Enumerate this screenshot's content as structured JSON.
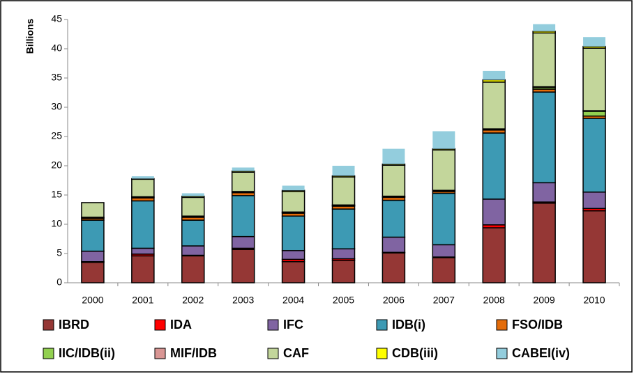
{
  "chart_data": {
    "type": "stacked-bar",
    "y_label": "Billions",
    "categories": [
      "2000",
      "2001",
      "2002",
      "2003",
      "2004",
      "2005",
      "2006",
      "2007",
      "2008",
      "2009",
      "2010"
    ],
    "ylim": [
      0,
      45
    ],
    "yticks": [
      0,
      5,
      10,
      15,
      20,
      25,
      30,
      35,
      40,
      45
    ],
    "grid": false,
    "series": [
      {
        "name": "IBRD",
        "color": "#953735",
        "values": [
          3.5,
          4.6,
          4.6,
          5.7,
          3.6,
          3.8,
          5.1,
          4.3,
          9.4,
          13.6,
          12.3
        ]
      },
      {
        "name": "IDA",
        "color": "#ff0000",
        "values": [
          0.1,
          0.3,
          0.1,
          0.2,
          0.4,
          0.3,
          0.1,
          0.1,
          0.5,
          0.2,
          0.4
        ]
      },
      {
        "name": "IFC",
        "color": "#8064a2",
        "values": [
          1.8,
          1.0,
          1.6,
          2.0,
          1.5,
          1.7,
          2.6,
          2.1,
          4.4,
          3.3,
          2.8
        ]
      },
      {
        "name": "IDB(i)",
        "color": "#3d9ab4",
        "values": [
          5.3,
          8.1,
          4.4,
          7.0,
          5.9,
          6.8,
          6.3,
          8.8,
          11.3,
          15.5,
          12.6
        ]
      },
      {
        "name": "FSO/IDB",
        "color": "#e46c0a",
        "values": [
          0.3,
          0.5,
          0.5,
          0.5,
          0.5,
          0.5,
          0.5,
          0.3,
          0.5,
          0.5,
          0.4
        ]
      },
      {
        "name": "IIC/IDB(ii)",
        "color": "#92d050",
        "values": [
          0.1,
          0.1,
          0.1,
          0.1,
          0.1,
          0.1,
          0.1,
          0.1,
          0.1,
          0.3,
          0.8
        ]
      },
      {
        "name": "MIF/IDB",
        "color": "#d99694",
        "values": [
          0.1,
          0.1,
          0.1,
          0.1,
          0.1,
          0.1,
          0.1,
          0.1,
          0.1,
          0.1,
          0.1
        ]
      },
      {
        "name": "CAF",
        "color": "#c3d69b",
        "values": [
          2.5,
          3.0,
          3.2,
          3.3,
          3.5,
          4.8,
          5.3,
          6.9,
          8.0,
          9.2,
          10.7
        ]
      },
      {
        "name": "CDB(iii)",
        "color": "#ffff00",
        "values": [
          0,
          0.1,
          0.2,
          0.2,
          0.2,
          0.2,
          0.2,
          0.2,
          0.4,
          0.3,
          0.3
        ]
      },
      {
        "name": "CABEI(iv)",
        "color": "#93cddd",
        "values": [
          0,
          0.4,
          0.5,
          0.6,
          0.8,
          1.7,
          2.6,
          3.0,
          1.5,
          1.2,
          1.6
        ]
      }
    ]
  }
}
